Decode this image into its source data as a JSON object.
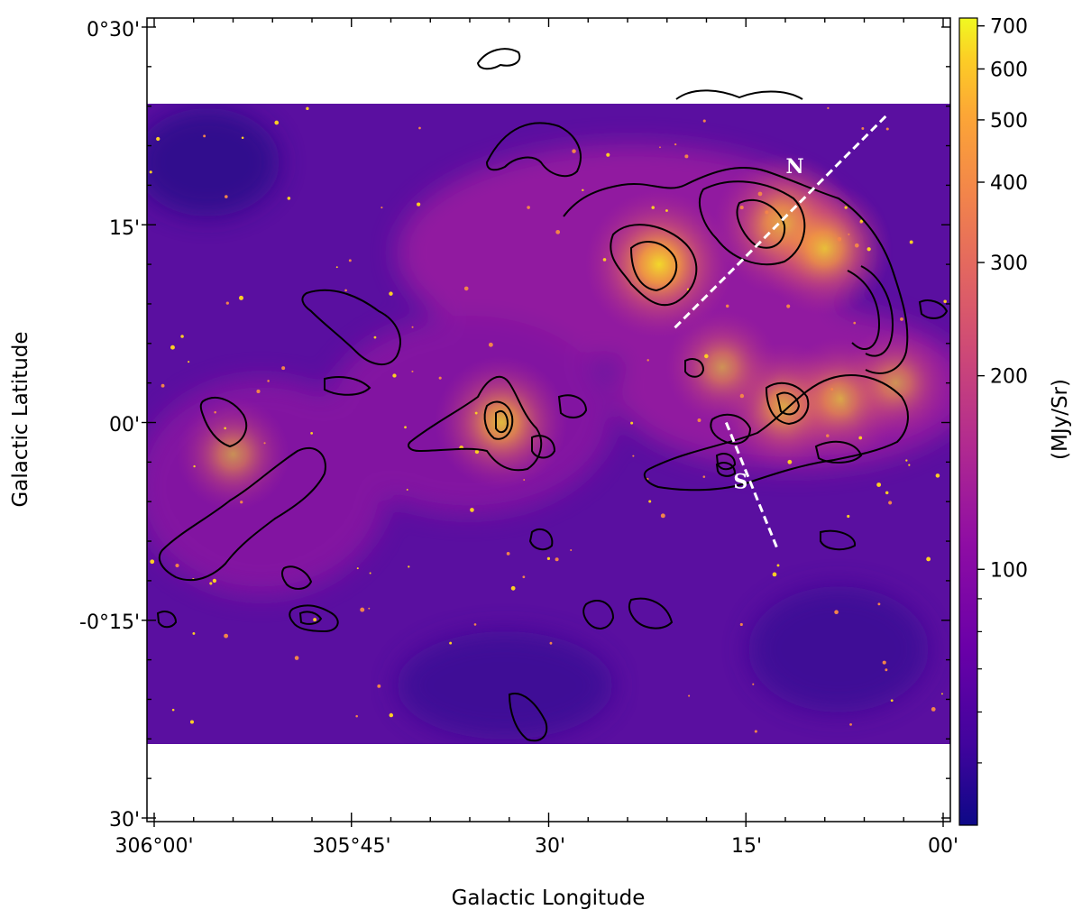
{
  "chart_data": {
    "type": "heatmap",
    "title": "",
    "xlabel": "Galactic Longitude",
    "ylabel": "Galactic Latitude",
    "x_ticks": [
      "306°00'",
      "305°45'",
      "30'",
      "15'",
      "00'"
    ],
    "y_ticks": [
      "0°30'",
      "15'",
      "00'",
      "-0°15'",
      "30'"
    ],
    "xlim_deg": [
      306.0,
      305.0
    ],
    "ylim_deg": [
      -0.5,
      0.5
    ],
    "image_extent_deg": {
      "l": [
        306.0,
        305.0
      ],
      "b": [
        -0.4,
        0.4
      ]
    },
    "colorbar": {
      "label": "(MJy/Sr)",
      "scale": "log",
      "colormap": "plasma",
      "range": [
        40,
        720
      ],
      "ticks": [
        100,
        200,
        300,
        400,
        500,
        600,
        700
      ],
      "tick_labels": [
        "100",
        "200",
        "300",
        "400",
        "500",
        "600",
        "700"
      ]
    },
    "cuts": [
      {
        "label": "N",
        "start": [
          305.34,
          0.12
        ],
        "end": [
          305.07,
          0.39
        ]
      },
      {
        "label": "S",
        "start": [
          305.275,
          0.0
        ],
        "end": [
          305.21,
          -0.16
        ]
      }
    ],
    "bright_regions": [
      {
        "l": 305.36,
        "b": 0.2,
        "level": 0.95
      },
      {
        "l": 305.2,
        "b": 0.25,
        "level": 0.9
      },
      {
        "l": 305.15,
        "b": 0.22,
        "level": 0.8
      },
      {
        "l": 305.56,
        "b": 0.0,
        "level": 0.8
      },
      {
        "l": 305.2,
        "b": 0.02,
        "level": 0.75
      },
      {
        "l": 305.13,
        "b": 0.03,
        "level": 0.7
      },
      {
        "l": 305.06,
        "b": 0.05,
        "level": 0.6
      },
      {
        "l": 305.9,
        "b": -0.04,
        "level": 0.6
      },
      {
        "l": 305.28,
        "b": 0.07,
        "level": 0.6
      }
    ],
    "contours": "black intensity contours overlaid on the image"
  }
}
